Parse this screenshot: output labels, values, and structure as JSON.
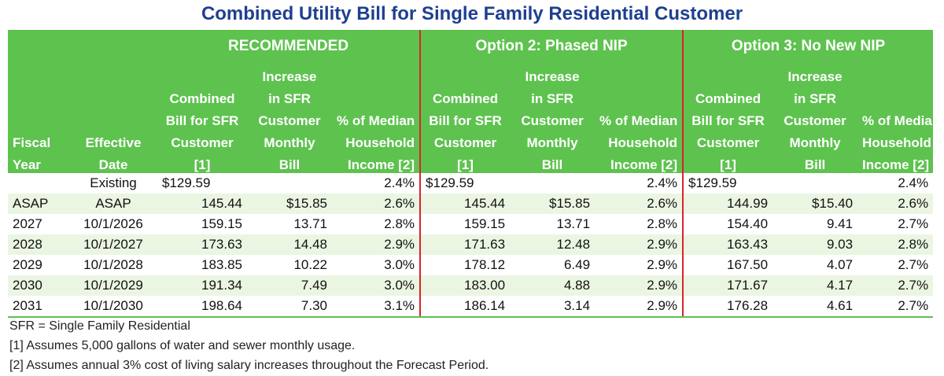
{
  "title": "Combined Utility Bill for Single Family Residential Customer",
  "groups": [
    "RECOMMENDED",
    "Option 2: Phased NIP",
    "Option 3: No New NIP"
  ],
  "col_headers": {
    "fiscal_year": [
      "Fiscal",
      "Year"
    ],
    "effective_date": [
      "Effective",
      "Date"
    ],
    "combined": [
      "Combined",
      "Bill for SFR",
      "Customer",
      "[1]"
    ],
    "increase": [
      "Increase",
      "in SFR",
      "Customer",
      "Monthly",
      "Bill"
    ],
    "median": [
      "% of Median",
      "Household",
      "Income [2]"
    ]
  },
  "rows": [
    {
      "fy": "",
      "date": "Existing",
      "v": [
        "$129.59",
        "",
        "2.4%",
        "$129.59",
        "",
        "2.4%",
        "$129.59",
        "",
        "2.4%"
      ]
    },
    {
      "fy": "ASAP",
      "date": "ASAP",
      "v": [
        "145.44",
        "$15.85",
        "2.6%",
        "145.44",
        "$15.85",
        "2.6%",
        "144.99",
        "$15.40",
        "2.6%"
      ]
    },
    {
      "fy": "2027",
      "date": "10/1/2026",
      "v": [
        "159.15",
        "13.71",
        "2.8%",
        "159.15",
        "13.71",
        "2.8%",
        "154.40",
        "9.41",
        "2.7%"
      ]
    },
    {
      "fy": "2028",
      "date": "10/1/2027",
      "v": [
        "173.63",
        "14.48",
        "2.9%",
        "171.63",
        "12.48",
        "2.9%",
        "163.43",
        "9.03",
        "2.8%"
      ]
    },
    {
      "fy": "2029",
      "date": "10/1/2028",
      "v": [
        "183.85",
        "10.22",
        "3.0%",
        "178.12",
        "6.49",
        "2.9%",
        "167.50",
        "4.07",
        "2.7%"
      ]
    },
    {
      "fy": "2030",
      "date": "10/1/2029",
      "v": [
        "191.34",
        "7.49",
        "3.0%",
        "183.00",
        "4.88",
        "2.9%",
        "171.67",
        "4.17",
        "2.7%"
      ]
    },
    {
      "fy": "2031",
      "date": "10/1/2030",
      "v": [
        "198.64",
        "7.30",
        "3.1%",
        "186.14",
        "3.14",
        "2.9%",
        "176.28",
        "4.61",
        "2.7%"
      ]
    }
  ],
  "notes": [
    "SFR = Single Family Residential",
    "[1] Assumes 5,000 gallons of water and sewer monthly usage.",
    "[2] Assumes annual 3% cost of living salary increases throughout the Forecast Period."
  ],
  "colors": {
    "header_green": "#5ec24f",
    "band_green": "#eaf6e2",
    "title_blue": "#1f3f8f",
    "divider_red": "#d9232b"
  }
}
